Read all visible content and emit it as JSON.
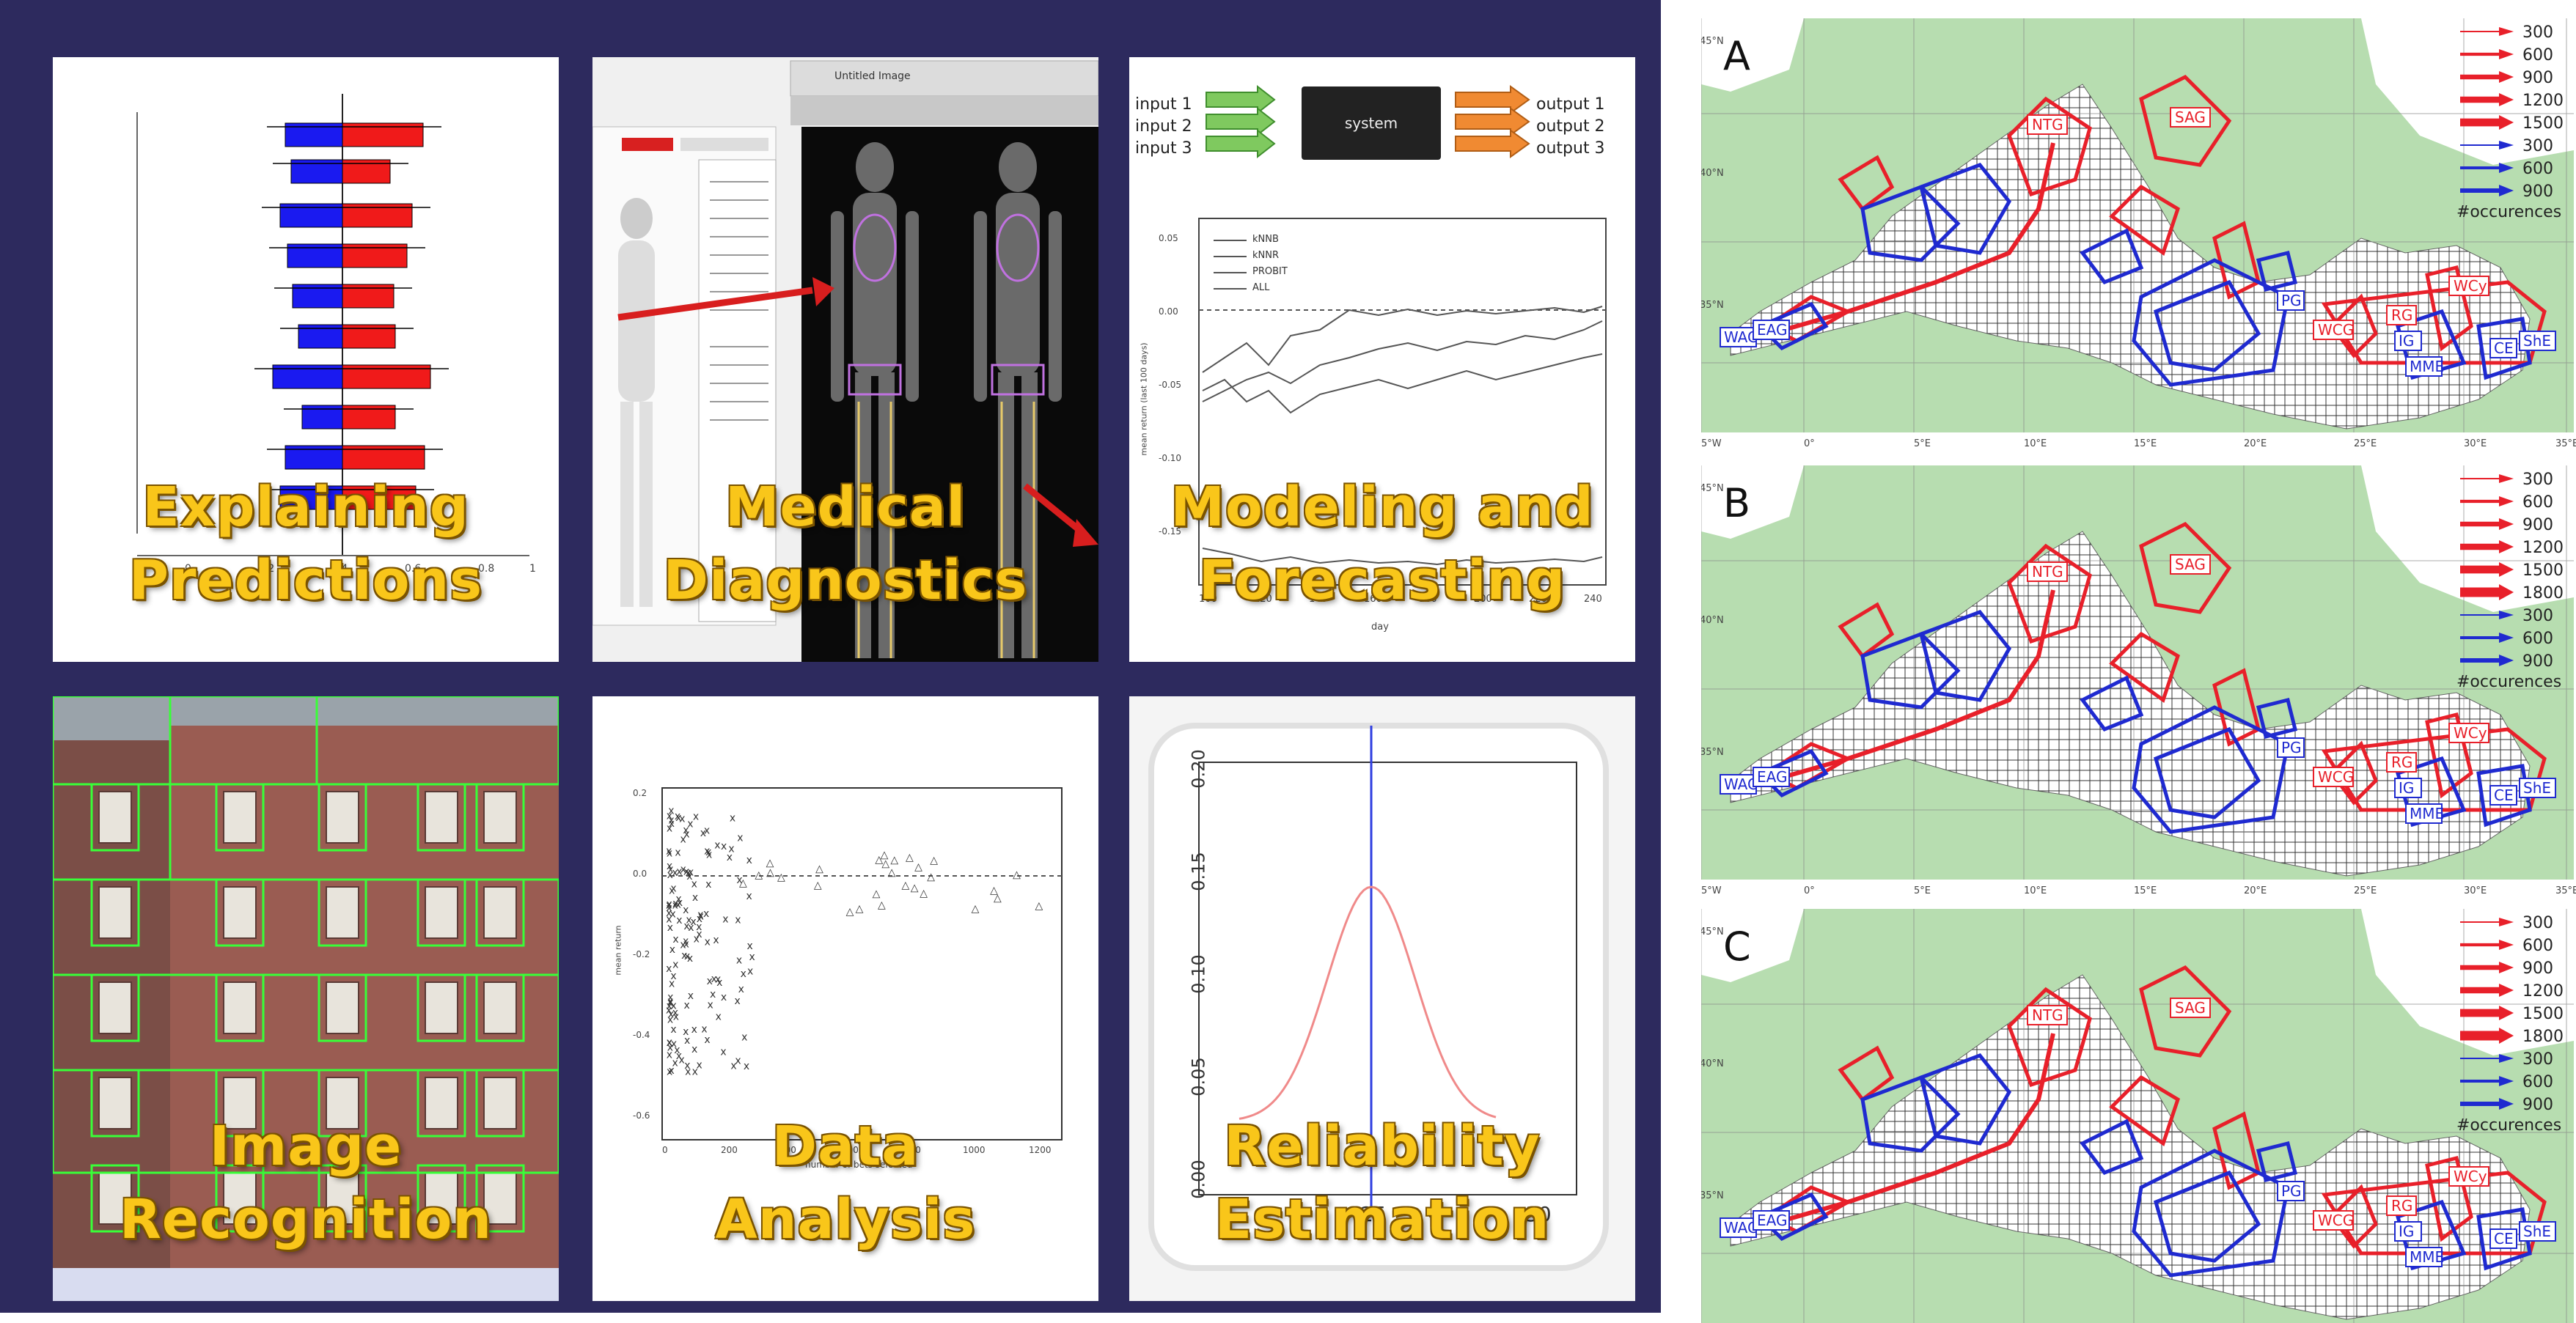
{
  "tiles": {
    "explaining": {
      "line1": "Explaining",
      "line2": "Predictions"
    },
    "medical": {
      "line1": "Medical",
      "line2": "Diagnostics",
      "window_title": "Untitled Image"
    },
    "modeling": {
      "line1": "Modeling and",
      "line2": "Forecasting",
      "inputs": [
        "input 1",
        "input 2",
        "input 3"
      ],
      "system": "system",
      "outputs": [
        "output 1",
        "output 2",
        "output 3"
      ],
      "legend": [
        "kNNB",
        "kNNR",
        "PROBIT",
        "ALL"
      ],
      "xlabel": "day",
      "ylabel": "mean return (last 100 days)",
      "xticks": [
        "100",
        "120",
        "140",
        "160",
        "180",
        "200",
        "220",
        "240"
      ],
      "yticks": [
        "0.05",
        "0.00",
        "-0.05",
        "-0.10",
        "-0.15"
      ]
    },
    "image": {
      "line1": "Image",
      "line2": "Recognition"
    },
    "data": {
      "line1": "Data",
      "line2": "Analysis",
      "xlabel": "number of bets selected",
      "ylabel": "mean return",
      "xticks": [
        "0",
        "200",
        "400",
        "600",
        "800",
        "1000",
        "1200"
      ],
      "yticks": [
        "0.2",
        "0.0",
        "-0.2",
        "-0.4",
        "-0.6"
      ]
    },
    "reliability": {
      "line1": "Reliability",
      "line2": "Estimation",
      "yticks": [
        "0.20",
        "0.15",
        "0.10",
        "0.05",
        "0.00"
      ],
      "xticks": [
        "25",
        "30"
      ]
    },
    "explaining_axis": [
      "0",
      "0.2",
      "0.4",
      "0.6",
      "0.8",
      "1"
    ]
  },
  "maps": {
    "panels": [
      {
        "letter": "A"
      },
      {
        "letter": "B"
      },
      {
        "letter": "C"
      }
    ],
    "legend_red_A": [
      "300",
      "600",
      "900",
      "1200",
      "1500"
    ],
    "legend_red_BC": [
      "300",
      "600",
      "900",
      "1200",
      "1500",
      "1800"
    ],
    "legend_blue": [
      "300",
      "600",
      "900"
    ],
    "legend_caption": "#occurences",
    "lat_labels": [
      "45°N",
      "40°N",
      "35°N"
    ],
    "lon_labels": [
      "5°W",
      "0°",
      "5°E",
      "10°E",
      "15°E",
      "20°E",
      "25°E",
      "30°E",
      "35°E"
    ],
    "regions_red": [
      "NTG",
      "SAG",
      "RG",
      "WCy",
      "WCG"
    ],
    "regions_blue": [
      "WAC",
      "EAG",
      "PG",
      "IG",
      "MME",
      "CE",
      "ShE"
    ],
    "colors": {
      "red": "#e8202a",
      "blue": "#1f2ad0",
      "land": "#b7ddb0",
      "sea": "#ffffff"
    }
  }
}
